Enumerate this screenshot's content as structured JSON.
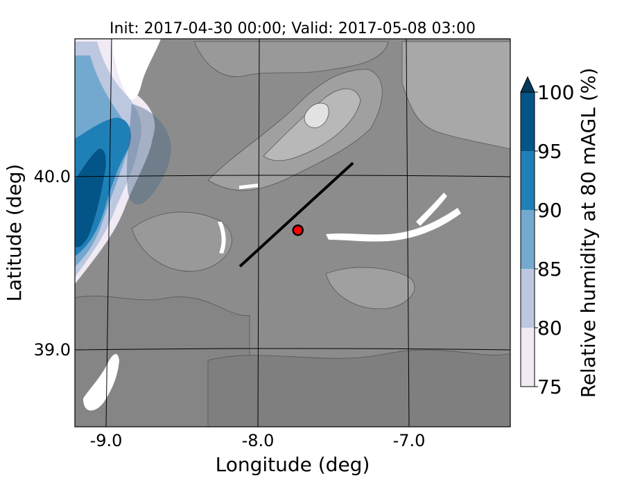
{
  "chart_data": {
    "type": "heatmap",
    "title": "Init: 2017-04-30 00:00; Valid: 2017-05-08 03:00",
    "xlabel": "Longitude (deg)",
    "ylabel": "Latitude (deg)",
    "xlim": [
      -9.2,
      -6.35
    ],
    "ylim": [
      38.55,
      40.8
    ],
    "grid": true,
    "x_ticks": [
      {
        "value": -9.0,
        "label": "-9.0"
      },
      {
        "value": -8.0,
        "label": "-8.0"
      },
      {
        "value": -7.0,
        "label": "-7.0"
      }
    ],
    "y_ticks": [
      {
        "value": 40.0,
        "label": "40.0"
      },
      {
        "value": 39.0,
        "label": "39.0"
      }
    ],
    "colorbar": {
      "label": "Relative humidity at 80 mAGL (%)",
      "levels": [
        75,
        80,
        85,
        90,
        95,
        100
      ],
      "tick_labels": [
        "75",
        "80",
        "85",
        "90",
        "95",
        "100"
      ],
      "colors": [
        "#efeaf4",
        "#bcc7e0",
        "#74a9cf",
        "#1f80b8",
        "#045587"
      ],
      "extend": "max",
      "extend_color": "#033a5e"
    },
    "cross_section_line": {
      "start": [
        -8.12,
        39.48
      ],
      "end": [
        -7.38,
        40.08
      ],
      "color": "#000000"
    },
    "site_marker": {
      "lon": -7.74,
      "lat": 39.69,
      "color": "#ff0000",
      "edge": "#000000"
    },
    "terrain_shading": {
      "colors": [
        "#7f7f7f",
        "#8c8c8c",
        "#9a9a9a",
        "#a8a8a8",
        "#b6b6b6",
        "#c6c6c6",
        "#d8d8d8",
        "#ebebeb"
      ]
    }
  }
}
